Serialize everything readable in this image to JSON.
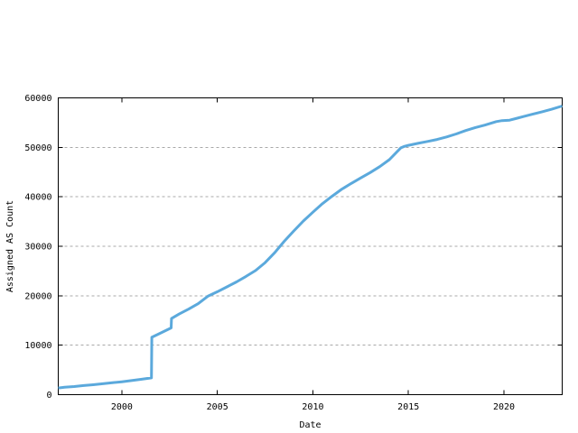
{
  "chart_data": {
    "type": "line",
    "title": "",
    "xlabel": "Date",
    "ylabel": "Assigned AS Count",
    "xlim": [
      1996.67,
      2023.05
    ],
    "ylim": [
      0,
      60000
    ],
    "xticks": [
      2000,
      2005,
      2010,
      2015,
      2020
    ],
    "xtick_labels": [
      "2000",
      "2005",
      "2010",
      "2015",
      "2020"
    ],
    "yticks": [
      0,
      10000,
      20000,
      30000,
      40000,
      50000,
      60000
    ],
    "ytick_labels": [
      "0",
      "10000",
      "20000",
      "30000",
      "40000",
      "50000",
      "60000"
    ],
    "grid": "horizontal-dashed",
    "legend_position": "none",
    "line_color": "#5BA9DC",
    "grid_color": "#A8A8A8",
    "axis_color": "#000000",
    "series": [
      {
        "name": "Assigned AS Count",
        "points": [
          [
            1996.67,
            1350
          ],
          [
            1997,
            1500
          ],
          [
            1997.5,
            1650
          ],
          [
            1998,
            1850
          ],
          [
            1998.5,
            2000
          ],
          [
            1999,
            2200
          ],
          [
            1999.5,
            2400
          ],
          [
            2000,
            2600
          ],
          [
            2000.5,
            2850
          ],
          [
            2001,
            3100
          ],
          [
            2001.55,
            3400
          ],
          [
            2001.57,
            11600
          ],
          [
            2002,
            12400
          ],
          [
            2002.58,
            13500
          ],
          [
            2002.6,
            15400
          ],
          [
            2003,
            16300
          ],
          [
            2003.5,
            17300
          ],
          [
            2004,
            18400
          ],
          [
            2004.5,
            19900
          ],
          [
            2005,
            20800
          ],
          [
            2005.5,
            21800
          ],
          [
            2006,
            22800
          ],
          [
            2006.5,
            23900
          ],
          [
            2007,
            25100
          ],
          [
            2007.5,
            26700
          ],
          [
            2008,
            28700
          ],
          [
            2008.5,
            31000
          ],
          [
            2009,
            33100
          ],
          [
            2009.5,
            35100
          ],
          [
            2010,
            36900
          ],
          [
            2010.5,
            38600
          ],
          [
            2011,
            40100
          ],
          [
            2011.5,
            41500
          ],
          [
            2012,
            42700
          ],
          [
            2012.5,
            43800
          ],
          [
            2013,
            44900
          ],
          [
            2013.5,
            46100
          ],
          [
            2014,
            47500
          ],
          [
            2014.6,
            49900
          ],
          [
            2014.8,
            50200
          ],
          [
            2015,
            50400
          ],
          [
            2015.5,
            50800
          ],
          [
            2016,
            51200
          ],
          [
            2016.5,
            51600
          ],
          [
            2017,
            52100
          ],
          [
            2017.5,
            52700
          ],
          [
            2018,
            53400
          ],
          [
            2018.5,
            54000
          ],
          [
            2019,
            54500
          ],
          [
            2019.6,
            55200
          ],
          [
            2019.9,
            55400
          ],
          [
            2020.3,
            55500
          ],
          [
            2020.7,
            55900
          ],
          [
            2021,
            56200
          ],
          [
            2021.5,
            56700
          ],
          [
            2022,
            57200
          ],
          [
            2022.5,
            57700
          ],
          [
            2023.05,
            58350
          ]
        ]
      }
    ]
  }
}
